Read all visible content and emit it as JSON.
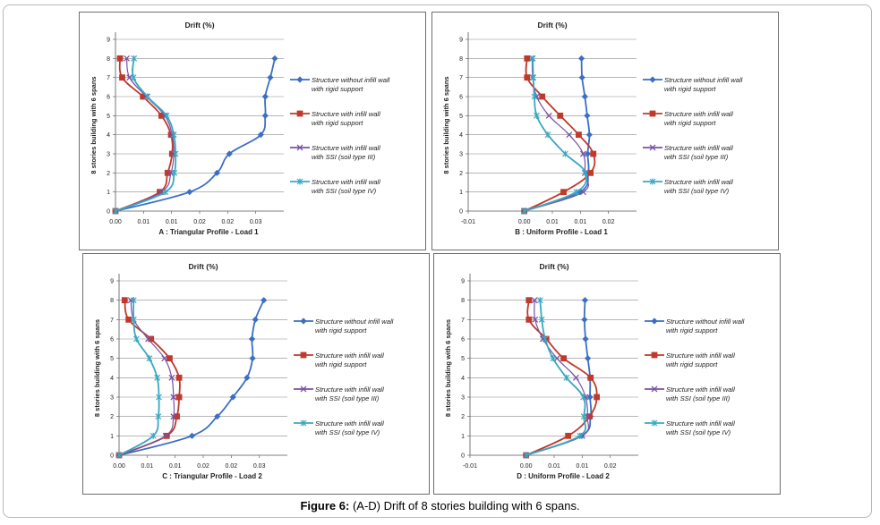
{
  "figure_caption": {
    "label": "Figure 6:",
    "text": " (A-D) Drift of 8 stories building with 6 spans."
  },
  "colors": {
    "series_1": "#3a6fc4",
    "series_2": "#c0392b",
    "series_3": "#7a52a3",
    "series_4": "#38a9c2"
  },
  "chart_data": [
    {
      "type": "line",
      "title": "Drift (%)",
      "subtitle": "A : Triangular Profile - Load 1",
      "xlabel": "",
      "ylabel": "8 stories building with 6 spans",
      "xlim": [
        0,
        0.03
      ],
      "ylim": [
        0,
        9
      ],
      "xticks": [
        "0.00",
        "0.01",
        "0.01",
        "0.02",
        "0.02",
        "0.03"
      ],
      "xtick_values": [
        0,
        0.005,
        0.01,
        0.015,
        0.02,
        0.025
      ],
      "yticks": [
        "0",
        "1",
        "2",
        "3",
        "4",
        "5",
        "6",
        "7",
        "8",
        "9"
      ],
      "grid": "horizontal",
      "legend_position": "right",
      "y": [
        0,
        1,
        2,
        3,
        4,
        5,
        6,
        7,
        8
      ],
      "series": [
        {
          "name": "Structure without infill wall with rigid support",
          "marker": "diamond",
          "values": [
            0,
            0.0132,
            0.0181,
            0.0203,
            0.0259,
            0.0267,
            0.0267,
            0.0276,
            0.0284
          ]
        },
        {
          "name": "Structure with infill wall with rigid support",
          "marker": "square",
          "values": [
            0,
            0.0079,
            0.0093,
            0.0101,
            0.0099,
            0.0082,
            0.0049,
            0.0012,
            0.0008
          ]
        },
        {
          "name": "Structure with infill wall with SSI (soil type III)",
          "marker": "x",
          "values": [
            0,
            0.0082,
            0.0099,
            0.0104,
            0.0101,
            0.0088,
            0.0055,
            0.0025,
            0.002
          ]
        },
        {
          "name": "Structure with infill wall with SSI (soil type IV)",
          "marker": "star",
          "values": [
            0,
            0.0089,
            0.0105,
            0.0107,
            0.0104,
            0.0091,
            0.0057,
            0.0032,
            0.0033
          ]
        }
      ],
      "legend_lines": [
        [
          "Structure without infill wall",
          "with rigid support"
        ],
        [
          "Structure with infill wall",
          "with rigid support"
        ],
        [
          "Structure with infill wall",
          "with SSI (soil type III)"
        ],
        [
          "Structure with infill wall",
          "with SSI (soil type IV)"
        ]
      ]
    },
    {
      "type": "line",
      "title": "Drift (%)",
      "subtitle": "B : Uniform Profile - Load 1",
      "xlabel": "",
      "ylabel": "8 stories building with 6 spans",
      "xlim": [
        -0.01,
        0.02
      ],
      "ylim": [
        0,
        9
      ],
      "xticks": [
        "-0.01",
        "0.00",
        "0.01",
        "0.01",
        "0.02"
      ],
      "xtick_values": [
        -0.01,
        0,
        0.005,
        0.01,
        0.015
      ],
      "yticks": [
        "0",
        "1",
        "2",
        "3",
        "4",
        "5",
        "6",
        "7",
        "8",
        "9"
      ],
      "grid": "horizontal",
      "legend_position": "right",
      "y": [
        0,
        1,
        2,
        3,
        4,
        5,
        6,
        7,
        8
      ],
      "series": [
        {
          "name": "Structure without infill wall with rigid support",
          "marker": "diamond",
          "values": [
            0,
            0.0099,
            0.0114,
            0.0113,
            0.0116,
            0.0112,
            0.0108,
            0.0103,
            0.0102
          ]
        },
        {
          "name": "Structure with infill wall with rigid support",
          "marker": "square",
          "values": [
            0,
            0.007,
            0.0118,
            0.0123,
            0.0097,
            0.0064,
            0.0032,
            0.0005,
            0.0005
          ]
        },
        {
          "name": "Structure with infill wall with SSI (soil type III)",
          "marker": "x",
          "values": [
            0,
            0.0105,
            0.0108,
            0.0105,
            0.008,
            0.0044,
            0.0022,
            0.0015,
            0.0014
          ]
        },
        {
          "name": "Structure with infill wall with SSI (soil type IV)",
          "marker": "star",
          "values": [
            0,
            0.0093,
            0.0109,
            0.0073,
            0.0042,
            0.0022,
            0.0018,
            0.0016,
            0.0015
          ]
        }
      ],
      "legend_lines": [
        [
          "Structure without infill wall",
          "with rigid support"
        ],
        [
          "Structure with infill wall",
          "with rigid support"
        ],
        [
          "Structure with infill wall",
          "with SSI (soil type III)"
        ],
        [
          "Structure with infill wall",
          "with SSI (soil type IV)"
        ]
      ]
    },
    {
      "type": "line",
      "title": "Drift (%)",
      "subtitle": "C : Triangular  Profile - Load 2",
      "xlabel": "",
      "ylabel": "8 stories building with 6 spans",
      "xlim": [
        0,
        0.03
      ],
      "ylim": [
        0,
        9
      ],
      "xticks": [
        "0.00",
        "0.01",
        "0.01",
        "0.02",
        "0.02",
        "0.03"
      ],
      "xtick_values": [
        0,
        0.005,
        0.01,
        0.015,
        0.02,
        0.025
      ],
      "yticks": [
        "0",
        "1",
        "2",
        "3",
        "4",
        "5",
        "6",
        "7",
        "8",
        "9"
      ],
      "grid": "horizontal",
      "legend_position": "right",
      "y": [
        0,
        1,
        2,
        3,
        4,
        5,
        6,
        7,
        8
      ],
      "series": [
        {
          "name": "Structure without infill wall with rigid support",
          "marker": "diamond",
          "values": [
            0,
            0.013,
            0.0175,
            0.0203,
            0.0228,
            0.0238,
            0.0237,
            0.0243,
            0.0258
          ]
        },
        {
          "name": "Structure with infill wall with rigid support",
          "marker": "square",
          "values": [
            0,
            0.0085,
            0.0103,
            0.0107,
            0.0107,
            0.009,
            0.0057,
            0.0017,
            0.001
          ]
        },
        {
          "name": "Structure with infill wall with SSI (soil type III)",
          "marker": "x",
          "values": [
            0,
            0.0083,
            0.0097,
            0.0097,
            0.0094,
            0.0081,
            0.0052,
            0.0026,
            0.0021
          ]
        },
        {
          "name": "Structure with infill wall with SSI (soil type IV)",
          "marker": "star",
          "values": [
            0,
            0.0061,
            0.007,
            0.0071,
            0.0068,
            0.0054,
            0.0031,
            0.0026,
            0.0026
          ]
        }
      ],
      "legend_lines": [
        [
          "Structure without infill wall",
          "with rigid support"
        ],
        [
          "Structure with infill wall",
          "with rigid support"
        ],
        [
          "Structure with infill wall",
          "with SSI (soil type III)"
        ],
        [
          "Structure with infill wall",
          "with SSI (soil type IV)"
        ]
      ]
    },
    {
      "type": "line",
      "title": "Drift (%)",
      "subtitle": "D : Uniform Profile - Load 2",
      "xlabel": "",
      "ylabel": "8 stories building with 6 spans",
      "xlim": [
        -0.01,
        0.02
      ],
      "ylim": [
        0,
        9
      ],
      "xticks": [
        "-0.01",
        "0.00",
        "0.01",
        "0.01",
        "0.02"
      ],
      "xtick_values": [
        -0.01,
        0,
        0.005,
        0.01,
        0.015
      ],
      "yticks": [
        "0",
        "1",
        "2",
        "3",
        "4",
        "5",
        "6",
        "7",
        "8",
        "9"
      ],
      "grid": "horizontal",
      "legend_position": "right",
      "y": [
        0,
        1,
        2,
        3,
        4,
        5,
        6,
        7,
        8
      ],
      "series": [
        {
          "name": "Structure without infill wall with rigid support",
          "marker": "diamond",
          "values": [
            0,
            0.0099,
            0.0115,
            0.0114,
            0.0114,
            0.011,
            0.0106,
            0.0104,
            0.0105
          ]
        },
        {
          "name": "Structure with infill wall with rigid support",
          "marker": "square",
          "values": [
            0,
            0.0075,
            0.0113,
            0.0126,
            0.0115,
            0.0067,
            0.0036,
            0.0005,
            0.0005
          ]
        },
        {
          "name": "Structure with infill wall with SSI (soil type III)",
          "marker": "x",
          "values": [
            0,
            0.01,
            0.0109,
            0.0106,
            0.0089,
            0.0055,
            0.003,
            0.0016,
            0.0015
          ]
        },
        {
          "name": "Structure with infill wall with SSI (soil type IV)",
          "marker": "star",
          "values": [
            0,
            0.0096,
            0.0103,
            0.0102,
            0.0072,
            0.0048,
            0.0034,
            0.0028,
            0.0025
          ]
        }
      ],
      "legend_lines": [
        [
          "Structure without infill wall",
          "with rigid support"
        ],
        [
          "Structure with infill wall",
          "with rigid support"
        ],
        [
          "Structure with infill wall",
          "with SSI (soil type III)"
        ],
        [
          "Structure with infill wall",
          "with SSI (soil type IV)"
        ]
      ]
    }
  ]
}
